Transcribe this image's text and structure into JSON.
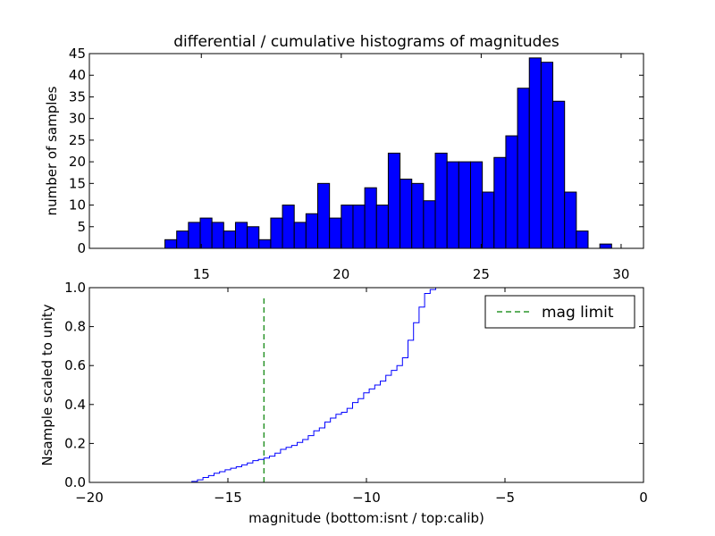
{
  "title": "differential / cumulative histograms of magnitudes",
  "chart_data": [
    {
      "type": "bar",
      "name": "differential histogram",
      "title": "differential / cumulative histograms of magnitudes",
      "xlabel": "",
      "ylabel": "number of samples",
      "xlim": [
        11.0,
        30.8
      ],
      "ylim": [
        0,
        45
      ],
      "x_ticks": [
        15,
        20,
        25,
        30
      ],
      "x_tick_labels": [
        "15",
        "20",
        "25",
        "30"
      ],
      "y_ticks": [
        0,
        5,
        10,
        15,
        20,
        25,
        30,
        35,
        40,
        45
      ],
      "y_tick_labels": [
        "0",
        "5",
        "10",
        "15",
        "20",
        "25",
        "30",
        "35",
        "40",
        "45"
      ],
      "bin_width": 0.42,
      "bin_starts": [
        13.7,
        14.12,
        14.54,
        14.96,
        15.38,
        15.8,
        16.22,
        16.64,
        17.06,
        17.48,
        17.9,
        18.32,
        18.74,
        19.16,
        19.58,
        20.0,
        20.42,
        20.84,
        21.26,
        21.68,
        22.1,
        22.52,
        22.94,
        23.36,
        23.78,
        24.2,
        24.62,
        25.04,
        25.46,
        25.88,
        26.3,
        26.72,
        27.14,
        27.56,
        27.98,
        28.4,
        28.82,
        29.24
      ],
      "values": [
        2,
        4,
        6,
        7,
        6,
        4,
        6,
        5,
        2,
        7,
        10,
        6,
        8,
        15,
        7,
        10,
        10,
        14,
        10,
        22,
        16,
        15,
        11,
        22,
        20,
        20,
        20,
        13,
        21,
        26,
        37,
        44,
        43,
        34,
        13,
        4,
        0,
        1
      ],
      "color": "#0000ff"
    },
    {
      "type": "line",
      "name": "cumulative histogram",
      "title": "",
      "xlabel": "magnitude (bottom:isnt / top:calib)",
      "ylabel": "Nsample scaled to unity",
      "xlim": [
        -20,
        0
      ],
      "ylim": [
        0,
        1.0
      ],
      "x_ticks": [
        -20,
        -15,
        -10,
        -5,
        0
      ],
      "x_tick_labels": [
        "−20",
        "−15",
        "−10",
        "−5",
        "0"
      ],
      "y_ticks": [
        0,
        0.2,
        0.4,
        0.6,
        0.8,
        1.0
      ],
      "y_tick_labels": [
        "0.0",
        "0.2",
        "0.4",
        "0.6",
        "0.8",
        "1.0"
      ],
      "series": [
        {
          "name": "cumulative",
          "color": "#0000ff",
          "step_x": [
            -20.0,
            -16.3,
            -16.1,
            -15.9,
            -15.7,
            -15.5,
            -15.3,
            -15.1,
            -14.9,
            -14.7,
            -14.5,
            -14.3,
            -14.1,
            -13.9,
            -13.7,
            -13.5,
            -13.3,
            -13.1,
            -12.9,
            -12.7,
            -12.5,
            -12.3,
            -12.1,
            -11.9,
            -11.7,
            -11.5,
            -11.3,
            -11.1,
            -10.9,
            -10.7,
            -10.5,
            -10.3,
            -10.1,
            -9.9,
            -9.7,
            -9.5,
            -9.3,
            -9.1,
            -8.9,
            -8.7,
            -8.5,
            -8.3,
            -8.1,
            -7.9,
            -7.7,
            -7.5
          ],
          "step_y": [
            0.0,
            0.005,
            0.013,
            0.025,
            0.035,
            0.047,
            0.055,
            0.065,
            0.073,
            0.08,
            0.09,
            0.1,
            0.112,
            0.118,
            0.125,
            0.135,
            0.15,
            0.17,
            0.18,
            0.19,
            0.205,
            0.22,
            0.24,
            0.265,
            0.28,
            0.31,
            0.33,
            0.35,
            0.36,
            0.38,
            0.41,
            0.43,
            0.46,
            0.48,
            0.5,
            0.52,
            0.55,
            0.575,
            0.6,
            0.64,
            0.73,
            0.82,
            0.9,
            0.97,
            0.99,
            1.0
          ]
        },
        {
          "name": "mag limit",
          "color": "#008000",
          "style": "dashed",
          "x": -13.7,
          "y_range": [
            0,
            0.96
          ]
        }
      ],
      "legend": {
        "label": "mag limit",
        "location": "upper-right"
      }
    }
  ]
}
